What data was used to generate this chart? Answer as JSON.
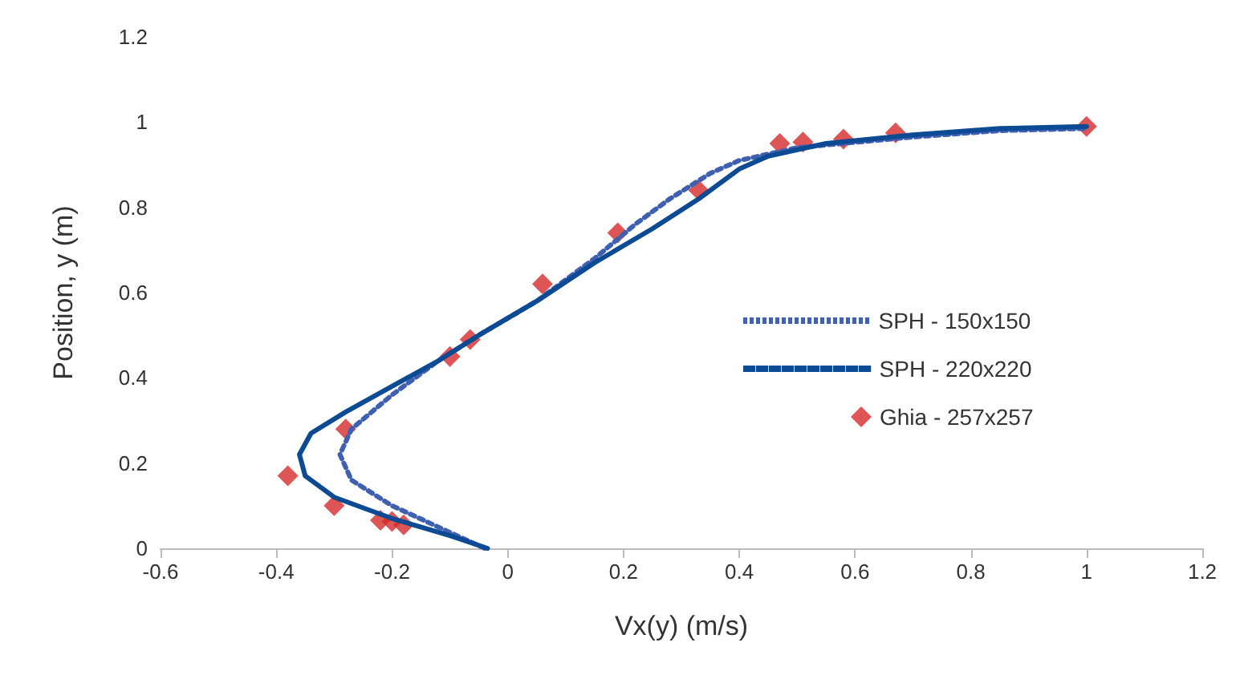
{
  "chart_data": {
    "type": "line",
    "xlabel": "Vx(y) (m/s)",
    "ylabel": "Position, y (m)",
    "xlim": [
      -0.6,
      1.2
    ],
    "xticks": [
      -0.6,
      -0.4,
      -0.2,
      0,
      0.2,
      0.4,
      0.6,
      0.8,
      1,
      1.2
    ],
    "ylim": [
      0,
      1.2
    ],
    "yticks": [
      0,
      0.2,
      0.4,
      0.6,
      0.8,
      1,
      1.2
    ],
    "grid": false,
    "legend": "right",
    "marker": "none",
    "series": [
      {
        "name": "SPH - 150x150",
        "color": "#3f5fb0",
        "line_style": "dotted",
        "x": [
          -0.04,
          -0.12,
          -0.2,
          -0.27,
          -0.29,
          -0.27,
          -0.2,
          -0.12,
          -0.05,
          0.05,
          0.15,
          0.22,
          0.28,
          0.35,
          0.4,
          0.5,
          0.7,
          0.85,
          1.0
        ],
        "values": [
          0,
          0.05,
          0.1,
          0.16,
          0.22,
          0.28,
          0.36,
          0.44,
          0.5,
          0.58,
          0.68,
          0.76,
          0.82,
          0.88,
          0.91,
          0.94,
          0.965,
          0.98,
          0.985
        ]
      },
      {
        "name": "SPH - 220x220",
        "color": "#0d4a94",
        "line_style": "solid",
        "x": [
          -0.035,
          -0.1,
          -0.2,
          -0.3,
          -0.35,
          -0.36,
          -0.34,
          -0.28,
          -0.2,
          -0.12,
          -0.05,
          0.05,
          0.15,
          0.25,
          0.33,
          0.4,
          0.45,
          0.55,
          0.7,
          0.85,
          1.0
        ],
        "values": [
          0,
          0.03,
          0.07,
          0.12,
          0.17,
          0.22,
          0.27,
          0.32,
          0.38,
          0.44,
          0.5,
          0.58,
          0.67,
          0.75,
          0.82,
          0.89,
          0.92,
          0.95,
          0.97,
          0.985,
          0.99
        ]
      },
      {
        "name": "Ghia - 257x257",
        "type": "scatter",
        "marker": "diamond",
        "color": "#d42a2a",
        "x": [
          -0.38,
          -0.3,
          -0.28,
          -0.22,
          -0.2,
          -0.18,
          -0.1,
          -0.065,
          0.06,
          0.19,
          0.33,
          0.47,
          0.51,
          0.58,
          0.67,
          1.0
        ],
        "values": [
          0.17,
          0.1,
          0.28,
          0.066,
          0.063,
          0.055,
          0.45,
          0.49,
          0.62,
          0.74,
          0.84,
          0.95,
          0.953,
          0.96,
          0.975,
          0.99
        ]
      }
    ]
  }
}
